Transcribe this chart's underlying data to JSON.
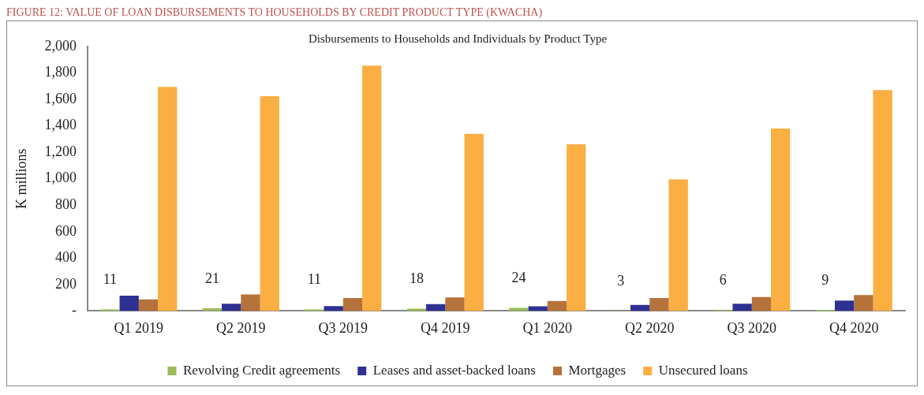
{
  "chart_data": {
    "type": "bar",
    "title": "Disbursements to Households and Individuals by Product Type",
    "ylabel": "K millions",
    "annotations": [
      "FIGURE 12: VALUE OF LOAN DISBURSEMENTS TO HOUSEHOLDS BY CREDIT PRODUCT TYPE (KWACHA)"
    ],
    "categories": [
      "Q1 2019",
      "Q2 2019",
      "Q3 2019",
      "Q4 2019",
      "Q1 2020",
      "Q2 2020",
      "Q3 2020",
      "Q4 2020"
    ],
    "series": [
      {
        "name": "Revolving Credit agreements",
        "color": "#9bbb59",
        "values": [
          11,
          21,
          11,
          18,
          24,
          3,
          6,
          9
        ],
        "value_labels": [
          "11",
          "21",
          "11",
          "18",
          "24",
          "3",
          "6",
          "9"
        ]
      },
      {
        "name": "Leases and asset-backed loans",
        "color": "#2e3192",
        "values": [
          115,
          55,
          37,
          52,
          35,
          45,
          55,
          78
        ]
      },
      {
        "name": "Mortgages",
        "color": "#b5723a",
        "values": [
          88,
          125,
          98,
          102,
          75,
          98,
          105,
          120
        ]
      },
      {
        "name": "Unsecured loans",
        "color": "#fbae42",
        "values": [
          1695,
          1625,
          1855,
          1340,
          1260,
          995,
          1380,
          1670
        ]
      }
    ],
    "ylim": [
      0,
      2000
    ],
    "yticks": [
      {
        "value": 0,
        "label": "-"
      },
      200,
      400,
      600,
      800,
      {
        "value": 1000,
        "label": "1,000"
      },
      {
        "value": 1200,
        "label": "1,200"
      },
      {
        "value": 1400,
        "label": "1,400"
      },
      {
        "value": 1600,
        "label": "1,600"
      },
      {
        "value": 1800,
        "label": "1,800"
      },
      {
        "value": 2000,
        "label": "2,000"
      }
    ],
    "grid": false,
    "legend": "bottom"
  }
}
